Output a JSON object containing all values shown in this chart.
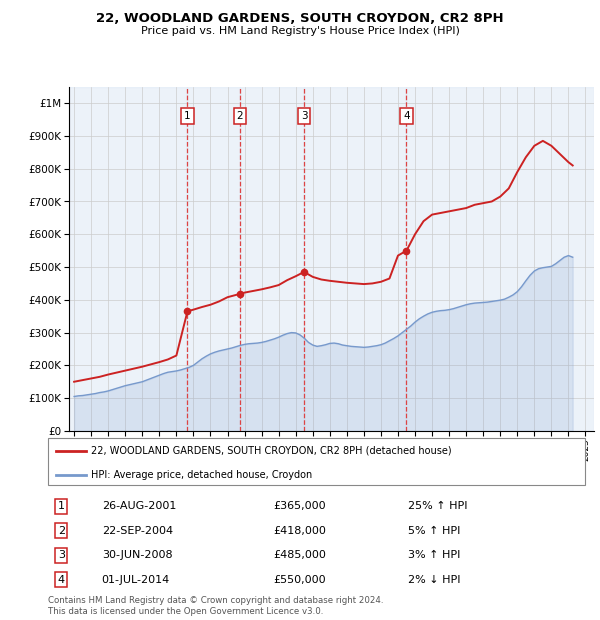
{
  "title": "22, WOODLAND GARDENS, SOUTH CROYDON, CR2 8PH",
  "subtitle": "Price paid vs. HM Land Registry's House Price Index (HPI)",
  "ylabel_ticks": [
    "£0",
    "£100K",
    "£200K",
    "£300K",
    "£400K",
    "£500K",
    "£600K",
    "£700K",
    "£800K",
    "£900K",
    "£1M"
  ],
  "ytick_values": [
    0,
    100000,
    200000,
    300000,
    400000,
    500000,
    600000,
    700000,
    800000,
    900000,
    1000000
  ],
  "ylim": [
    0,
    1050000
  ],
  "xlim_start": 1994.7,
  "xlim_end": 2025.5,
  "sales": [
    {
      "label": "1",
      "date_str": "26-AUG-2001",
      "year": 2001.65,
      "price": 365000
    },
    {
      "label": "2",
      "date_str": "22-SEP-2004",
      "year": 2004.72,
      "price": 418000
    },
    {
      "label": "3",
      "date_str": "30-JUN-2008",
      "year": 2008.49,
      "price": 485000
    },
    {
      "label": "4",
      "date_str": "01-JUL-2014",
      "year": 2014.5,
      "price": 550000
    }
  ],
  "sale_annotations": [
    {
      "label": "1",
      "pct": "25%",
      "dir": "↑"
    },
    {
      "label": "2",
      "pct": "5%",
      "dir": "↑"
    },
    {
      "label": "3",
      "pct": "3%",
      "dir": "↑"
    },
    {
      "label": "4",
      "pct": "2%",
      "dir": "↓"
    }
  ],
  "hpi_years": [
    1995.0,
    1995.25,
    1995.5,
    1995.75,
    1996.0,
    1996.25,
    1996.5,
    1996.75,
    1997.0,
    1997.25,
    1997.5,
    1997.75,
    1998.0,
    1998.25,
    1998.5,
    1998.75,
    1999.0,
    1999.25,
    1999.5,
    1999.75,
    2000.0,
    2000.25,
    2000.5,
    2000.75,
    2001.0,
    2001.25,
    2001.5,
    2001.75,
    2002.0,
    2002.25,
    2002.5,
    2002.75,
    2003.0,
    2003.25,
    2003.5,
    2003.75,
    2004.0,
    2004.25,
    2004.5,
    2004.75,
    2005.0,
    2005.25,
    2005.5,
    2005.75,
    2006.0,
    2006.25,
    2006.5,
    2006.75,
    2007.0,
    2007.25,
    2007.5,
    2007.75,
    2008.0,
    2008.25,
    2008.5,
    2008.75,
    2009.0,
    2009.25,
    2009.5,
    2009.75,
    2010.0,
    2010.25,
    2010.5,
    2010.75,
    2011.0,
    2011.25,
    2011.5,
    2011.75,
    2012.0,
    2012.25,
    2012.5,
    2012.75,
    2013.0,
    2013.25,
    2013.5,
    2013.75,
    2014.0,
    2014.25,
    2014.5,
    2014.75,
    2015.0,
    2015.25,
    2015.5,
    2015.75,
    2016.0,
    2016.25,
    2016.5,
    2016.75,
    2017.0,
    2017.25,
    2017.5,
    2017.75,
    2018.0,
    2018.25,
    2018.5,
    2018.75,
    2019.0,
    2019.25,
    2019.5,
    2019.75,
    2020.0,
    2020.25,
    2020.5,
    2020.75,
    2021.0,
    2021.25,
    2021.5,
    2021.75,
    2022.0,
    2022.25,
    2022.5,
    2022.75,
    2023.0,
    2023.25,
    2023.5,
    2023.75,
    2024.0,
    2024.25
  ],
  "hpi_values": [
    105000,
    107000,
    108000,
    110000,
    112000,
    114000,
    117000,
    119000,
    122000,
    126000,
    130000,
    134000,
    138000,
    141000,
    144000,
    147000,
    150000,
    155000,
    160000,
    165000,
    170000,
    175000,
    179000,
    181000,
    183000,
    186000,
    190000,
    194000,
    200000,
    210000,
    220000,
    228000,
    235000,
    240000,
    244000,
    247000,
    250000,
    253000,
    257000,
    261000,
    264000,
    266000,
    267000,
    268000,
    270000,
    273000,
    277000,
    281000,
    286000,
    292000,
    297000,
    300000,
    299000,
    293000,
    283000,
    270000,
    262000,
    258000,
    260000,
    263000,
    267000,
    268000,
    266000,
    262000,
    260000,
    258000,
    257000,
    256000,
    255000,
    256000,
    258000,
    260000,
    263000,
    268000,
    275000,
    282000,
    290000,
    300000,
    310000,
    320000,
    332000,
    342000,
    350000,
    357000,
    362000,
    365000,
    367000,
    368000,
    370000,
    373000,
    377000,
    381000,
    385000,
    388000,
    390000,
    391000,
    392000,
    393000,
    395000,
    397000,
    399000,
    402000,
    408000,
    415000,
    425000,
    440000,
    458000,
    475000,
    488000,
    495000,
    498000,
    500000,
    502000,
    510000,
    520000,
    530000,
    535000,
    530000
  ],
  "price_line_years": [
    1995.0,
    1995.5,
    1996.0,
    1996.5,
    1997.0,
    1997.5,
    1998.0,
    1998.5,
    1999.0,
    1999.5,
    2000.0,
    2000.5,
    2001.0,
    2001.65,
    2002.0,
    2002.5,
    2003.0,
    2003.5,
    2004.0,
    2004.72,
    2005.0,
    2005.5,
    2006.0,
    2006.5,
    2007.0,
    2007.5,
    2008.0,
    2008.49,
    2009.0,
    2009.5,
    2010.0,
    2010.5,
    2011.0,
    2011.5,
    2012.0,
    2012.5,
    2013.0,
    2013.5,
    2014.0,
    2014.5,
    2015.0,
    2015.5,
    2016.0,
    2016.5,
    2017.0,
    2017.5,
    2018.0,
    2018.5,
    2019.0,
    2019.5,
    2020.0,
    2020.5,
    2021.0,
    2021.5,
    2022.0,
    2022.5,
    2023.0,
    2023.5,
    2024.0,
    2024.25
  ],
  "price_line_values": [
    150000,
    155000,
    160000,
    165000,
    172000,
    178000,
    184000,
    190000,
    196000,
    203000,
    210000,
    218000,
    230000,
    365000,
    370000,
    378000,
    385000,
    395000,
    408000,
    418000,
    422000,
    427000,
    432000,
    438000,
    445000,
    460000,
    472000,
    485000,
    470000,
    462000,
    458000,
    455000,
    452000,
    450000,
    448000,
    450000,
    455000,
    465000,
    535000,
    550000,
    600000,
    640000,
    660000,
    665000,
    670000,
    675000,
    680000,
    690000,
    695000,
    700000,
    715000,
    740000,
    790000,
    835000,
    870000,
    885000,
    870000,
    845000,
    820000,
    810000
  ],
  "vline_color": "#dd4444",
  "hpi_color": "#7799cc",
  "price_color": "#cc2222",
  "grid_color": "#cccccc",
  "legend_label_price": "22, WOODLAND GARDENS, SOUTH CROYDON, CR2 8PH (detached house)",
  "legend_label_hpi": "HPI: Average price, detached house, Croydon",
  "footnote": "Contains HM Land Registry data © Crown copyright and database right 2024.\nThis data is licensed under the Open Government Licence v3.0.",
  "xtick_years": [
    1995,
    1996,
    1997,
    1998,
    1999,
    2000,
    2001,
    2002,
    2003,
    2004,
    2005,
    2006,
    2007,
    2008,
    2009,
    2010,
    2011,
    2012,
    2013,
    2014,
    2015,
    2016,
    2017,
    2018,
    2019,
    2020,
    2021,
    2022,
    2023,
    2024,
    2025
  ]
}
